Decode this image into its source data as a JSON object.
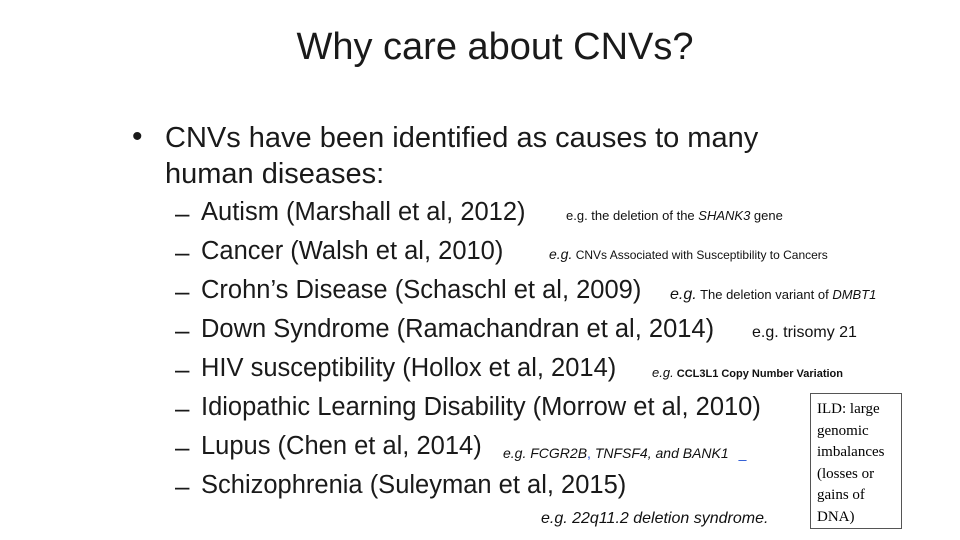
{
  "slide": {
    "title": "Why care about CNVs?",
    "bullet_symbol": "•",
    "lead_line1": "CNVs have been identified as causes to many",
    "lead_line2": "human diseases:",
    "dash_symbol": "–",
    "items": [
      {
        "label": "Autism (Marshall et al, 2012)"
      },
      {
        "label": "Cancer (Walsh et al, 2010)"
      },
      {
        "label": "Crohn’s Disease (Schaschl et al, 2009)"
      },
      {
        "label": "Down Syndrome (Ramachandran et al, 2014)"
      },
      {
        "label": "HIV susceptibility (Hollox et al, 2014)"
      },
      {
        "label": "Idiopathic Learning Disability (Morrow et al, 2010)"
      },
      {
        "label": "Lupus (Chen et al, 2014)"
      },
      {
        "label": "Schizophrenia (Suleyman et al, 2015)"
      }
    ],
    "notes": {
      "autism_prefix": "e.g. the deletion of the ",
      "autism_gene": "SHANK3",
      "autism_suffix": " gene",
      "cancer_eg": "e.g.",
      "cancer_text": " CNVs Associated with Susceptibility to Cancers",
      "crohn_eg": "e.g.",
      "crohn_text": "  The deletion variant of ",
      "crohn_gene": "DMBT1",
      "down_text": "e.g. trisomy 21",
      "hiv_eg": "e.g.",
      "hiv_text": " CCL3L1 Copy Number Variation",
      "lupus_eg": "e.g.",
      "lupus_genes": " FCGR2B",
      "lupus_genes_rest": " TNFSF4, and BANK1",
      "lupus_link_mark": ",",
      "lupus_link_mark2": "_",
      "schizo_text": "e.g.  22q11.2 deletion syndrome."
    },
    "ild_box": {
      "line1": "ILD: large",
      "line2": "genomic",
      "line3": "imbalances",
      "line4": "(losses or",
      "line5": "gains of",
      "line6": "DNA)"
    }
  }
}
